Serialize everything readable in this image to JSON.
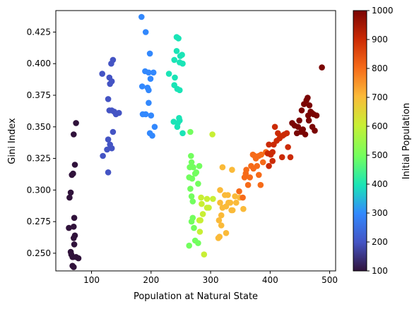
{
  "chart_data": {
    "type": "scatter",
    "xlabel": "Population at Natural State",
    "ylabel": "Gini Index",
    "xlim": [
      40,
      510
    ],
    "ylim": [
      0.236,
      0.442
    ],
    "xticks": [
      100,
      200,
      300,
      400,
      500
    ],
    "yticks": [
      0.25,
      0.275,
      0.3,
      0.325,
      0.35,
      0.375,
      0.4,
      0.425
    ],
    "ytick_labels": [
      "0.250",
      "0.275",
      "0.300",
      "0.325",
      "0.350",
      "0.375",
      "0.400",
      "0.425"
    ],
    "grid": false,
    "colorbar": {
      "label": "Initial Population",
      "range": [
        100,
        1000
      ],
      "ticks": [
        100,
        200,
        300,
        400,
        500,
        600,
        700,
        800,
        900,
        1000
      ],
      "colormap": "turbo"
    },
    "series": [
      {
        "c": 100,
        "points": [
          [
            62,
            0.27
          ],
          [
            65,
            0.251
          ],
          [
            68,
            0.247
          ],
          [
            63,
            0.294
          ],
          [
            65,
            0.298
          ],
          [
            67,
            0.312
          ],
          [
            69,
            0.313
          ],
          [
            72,
            0.32
          ],
          [
            74,
            0.353
          ],
          [
            70,
            0.344
          ],
          [
            71,
            0.278
          ],
          [
            70,
            0.271
          ],
          [
            72,
            0.264
          ],
          [
            70,
            0.262
          ],
          [
            71,
            0.257
          ],
          [
            69,
            0.247
          ],
          [
            68,
            0.24
          ],
          [
            70,
            0.239
          ],
          [
            74,
            0.247
          ],
          [
            78,
            0.246
          ],
          [
            66,
            0.249
          ]
        ]
      },
      {
        "c": 200,
        "points": [
          [
            118,
            0.392
          ],
          [
            130,
            0.389
          ],
          [
            131,
            0.384
          ],
          [
            134,
            0.386
          ],
          [
            133,
            0.4
          ],
          [
            136,
            0.403
          ],
          [
            128,
            0.372
          ],
          [
            134,
            0.363
          ],
          [
            141,
            0.36
          ],
          [
            138,
            0.362
          ],
          [
            146,
            0.361
          ],
          [
            130,
            0.363
          ],
          [
            136,
            0.346
          ],
          [
            128,
            0.34
          ],
          [
            131,
            0.336
          ],
          [
            126,
            0.332
          ],
          [
            134,
            0.333
          ],
          [
            119,
            0.327
          ],
          [
            128,
            0.314
          ]
        ]
      },
      {
        "c": 300,
        "points": [
          [
            184,
            0.437
          ],
          [
            191,
            0.425
          ],
          [
            198,
            0.408
          ],
          [
            190,
            0.394
          ],
          [
            196,
            0.393
          ],
          [
            204,
            0.393
          ],
          [
            199,
            0.388
          ],
          [
            185,
            0.382
          ],
          [
            194,
            0.381
          ],
          [
            196,
            0.379
          ],
          [
            196,
            0.369
          ],
          [
            186,
            0.36
          ],
          [
            191,
            0.36
          ],
          [
            200,
            0.359
          ],
          [
            206,
            0.35
          ],
          [
            198,
            0.345
          ],
          [
            202,
            0.343
          ]
        ]
      },
      {
        "c": 400,
        "points": [
          [
            243,
            0.421
          ],
          [
            246,
            0.42
          ],
          [
            243,
            0.41
          ],
          [
            249,
            0.406
          ],
          [
            252,
            0.407
          ],
          [
            239,
            0.403
          ],
          [
            248,
            0.401
          ],
          [
            253,
            0.4
          ],
          [
            230,
            0.392
          ],
          [
            240,
            0.389
          ],
          [
            239,
            0.383
          ],
          [
            244,
            0.38
          ],
          [
            248,
            0.379
          ],
          [
            238,
            0.354
          ],
          [
            244,
            0.35
          ],
          [
            248,
            0.355
          ],
          [
            247,
            0.357
          ],
          [
            253,
            0.345
          ],
          [
            245,
            0.353
          ]
        ]
      },
      {
        "c": 500,
        "points": [
          [
            266,
            0.346
          ],
          [
            267,
            0.327
          ],
          [
            268,
            0.322
          ],
          [
            271,
            0.318
          ],
          [
            265,
            0.318
          ],
          [
            264,
            0.31
          ],
          [
            269,
            0.309
          ],
          [
            266,
            0.301
          ],
          [
            268,
            0.295
          ],
          [
            270,
            0.291
          ],
          [
            274,
            0.313
          ],
          [
            276,
            0.314
          ],
          [
            279,
            0.305
          ],
          [
            281,
            0.319
          ],
          [
            268,
            0.275
          ],
          [
            270,
            0.278
          ],
          [
            272,
            0.27
          ],
          [
            274,
            0.26
          ],
          [
            279,
            0.258
          ],
          [
            264,
            0.256
          ]
        ]
      },
      {
        "c": 600,
        "points": [
          [
            303,
            0.344
          ],
          [
            284,
            0.294
          ],
          [
            285,
            0.289
          ],
          [
            281,
            0.276
          ],
          [
            283,
            0.276
          ],
          [
            282,
            0.267
          ],
          [
            287,
            0.281
          ],
          [
            294,
            0.286
          ],
          [
            297,
            0.286
          ],
          [
            294,
            0.293
          ],
          [
            304,
            0.293
          ],
          [
            289,
            0.249
          ]
        ]
      },
      {
        "c": 700,
        "points": [
          [
            320,
            0.318
          ],
          [
            316,
            0.3
          ],
          [
            316,
            0.29
          ],
          [
            324,
            0.296
          ],
          [
            326,
            0.287
          ],
          [
            330,
            0.29
          ],
          [
            329,
            0.296
          ],
          [
            333,
            0.29
          ],
          [
            335,
            0.284
          ],
          [
            337,
            0.284
          ],
          [
            341,
            0.295
          ],
          [
            343,
            0.29
          ],
          [
            349,
            0.294
          ],
          [
            355,
            0.285
          ],
          [
            336,
            0.316
          ],
          [
            320,
            0.286
          ],
          [
            318,
            0.28
          ],
          [
            314,
            0.276
          ],
          [
            313,
            0.262
          ],
          [
            315,
            0.263
          ],
          [
            326,
            0.266
          ],
          [
            318,
            0.272
          ]
        ]
      },
      {
        "c": 800,
        "points": [
          [
            348,
            0.299
          ],
          [
            354,
            0.294
          ],
          [
            357,
            0.31
          ],
          [
            359,
            0.313
          ],
          [
            360,
            0.316
          ],
          [
            363,
            0.304
          ],
          [
            366,
            0.31
          ],
          [
            368,
            0.319
          ],
          [
            371,
            0.328
          ],
          [
            374,
            0.327
          ],
          [
            376,
            0.325
          ],
          [
            378,
            0.319
          ],
          [
            381,
            0.312
          ],
          [
            381,
            0.327
          ],
          [
            385,
            0.328
          ],
          [
            388,
            0.322
          ],
          [
            393,
            0.33
          ],
          [
            384,
            0.304
          ],
          [
            372,
            0.317
          ]
        ]
      },
      {
        "c": 900,
        "points": [
          [
            396,
            0.329
          ],
          [
            398,
            0.336
          ],
          [
            401,
            0.328
          ],
          [
            404,
            0.33
          ],
          [
            406,
            0.336
          ],
          [
            408,
            0.35
          ],
          [
            413,
            0.345
          ],
          [
            416,
            0.341
          ],
          [
            421,
            0.343
          ],
          [
            424,
            0.344
          ],
          [
            430,
            0.334
          ],
          [
            428,
            0.345
          ],
          [
            434,
            0.326
          ],
          [
            420,
            0.326
          ],
          [
            398,
            0.319
          ],
          [
            404,
            0.323
          ],
          [
            411,
            0.339
          ]
        ]
      },
      {
        "c": 1000,
        "points": [
          [
            437,
            0.353
          ],
          [
            441,
            0.351
          ],
          [
            447,
            0.35
          ],
          [
            449,
            0.355
          ],
          [
            452,
            0.346
          ],
          [
            455,
            0.348
          ],
          [
            457,
            0.368
          ],
          [
            461,
            0.371
          ],
          [
            463,
            0.373
          ],
          [
            466,
            0.367
          ],
          [
            468,
            0.362
          ],
          [
            470,
            0.361
          ],
          [
            473,
            0.36
          ],
          [
            478,
            0.359
          ],
          [
            464,
            0.359
          ],
          [
            465,
            0.355
          ],
          [
            471,
            0.35
          ],
          [
            475,
            0.347
          ],
          [
            459,
            0.344
          ],
          [
            445,
            0.345
          ],
          [
            453,
            0.363
          ],
          [
            487,
            0.397
          ]
        ]
      }
    ]
  }
}
